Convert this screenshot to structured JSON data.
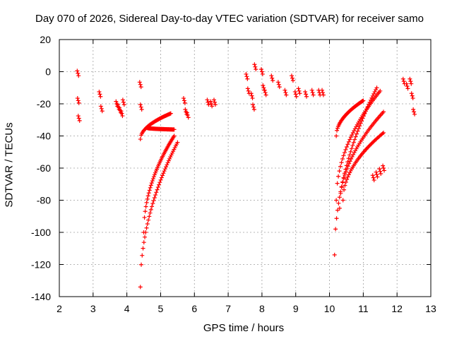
{
  "chart_data": {
    "type": "scatter",
    "title": "Day 070 of 2026, Sidereal Day-to-day VTEC variation (SDTVAR) for receiver samo",
    "xlabel": "GPS time / hours",
    "ylabel": "SDTVAR / TECUs",
    "xlim": [
      2,
      13
    ],
    "ylim": [
      -140,
      20
    ],
    "xticks": [
      2,
      3,
      4,
      5,
      6,
      7,
      8,
      9,
      10,
      11,
      12,
      13
    ],
    "yticks": [
      -140,
      -120,
      -100,
      -80,
      -60,
      -40,
      -20,
      0,
      20
    ],
    "grid": true,
    "marker": "+",
    "color": "#ff0000",
    "clusters": [
      {
        "x": [
          2.55,
          2.56,
          2.58
        ],
        "y": [
          -1,
          -18,
          -29
        ]
      },
      {
        "x": [
          3.2,
          3.25
        ],
        "y": [
          -14,
          -23
        ]
      },
      {
        "x": [
          3.7,
          3.75,
          3.8,
          3.85,
          3.9
        ],
        "y": [
          -20,
          -22,
          -24,
          -26,
          -19
        ]
      },
      {
        "x": [
          4.4,
          4.42
        ],
        "y": [
          -8,
          -22
        ]
      },
      {
        "x": [
          5.7,
          5.75,
          5.8
        ],
        "y": [
          -18,
          -25,
          -27
        ]
      },
      {
        "x": [
          6.4,
          6.5,
          6.6
        ],
        "y": [
          -19,
          -20,
          -19
        ]
      },
      {
        "x": [
          7.55,
          7.6,
          7.7,
          7.75,
          7.8
        ],
        "y": [
          -3,
          -12,
          -15,
          -22,
          3
        ]
      },
      {
        "x": [
          8.0,
          8.05,
          8.1
        ],
        "y": [
          0,
          -10,
          -13
        ]
      },
      {
        "x": [
          8.3,
          8.5,
          8.7,
          8.9,
          9.0
        ],
        "y": [
          -4,
          -8,
          -13,
          -4,
          -14
        ]
      },
      {
        "x": [
          9.1,
          9.3,
          9.5,
          9.7,
          9.8
        ],
        "y": [
          -12,
          -14,
          -13,
          -13,
          -13
        ]
      },
      {
        "x": [
          11.3,
          11.4,
          11.5,
          11.6
        ],
        "y": [
          -66,
          -64,
          -62,
          -60
        ]
      },
      {
        "x": [
          12.2,
          12.3,
          12.4,
          12.45,
          12.5
        ],
        "y": [
          -6,
          -9,
          -6,
          -15,
          -25
        ]
      }
    ],
    "arcs": [
      {
        "x_start": 4.4,
        "x_end": 5.5,
        "y_start": -134,
        "y_end": -44
      },
      {
        "x_start": 4.5,
        "x_end": 5.4,
        "y_start": -100,
        "y_end": -40
      },
      {
        "x_start": 4.4,
        "x_end": 5.3,
        "y_start": -42,
        "y_end": -26
      },
      {
        "x_start": 4.6,
        "x_end": 5.4,
        "y_start": -35,
        "y_end": -36
      },
      {
        "x_start": 10.15,
        "x_end": 11.4,
        "y_start": -114,
        "y_end": -10
      },
      {
        "x_start": 10.2,
        "x_end": 11.5,
        "y_start": -80,
        "y_end": -12
      },
      {
        "x_start": 10.3,
        "x_end": 11.6,
        "y_start": -85,
        "y_end": -25
      },
      {
        "x_start": 10.4,
        "x_end": 11.6,
        "y_start": -80,
        "y_end": -38
      },
      {
        "x_start": 10.2,
        "x_end": 11.0,
        "y_start": -40,
        "y_end": -18
      }
    ]
  }
}
